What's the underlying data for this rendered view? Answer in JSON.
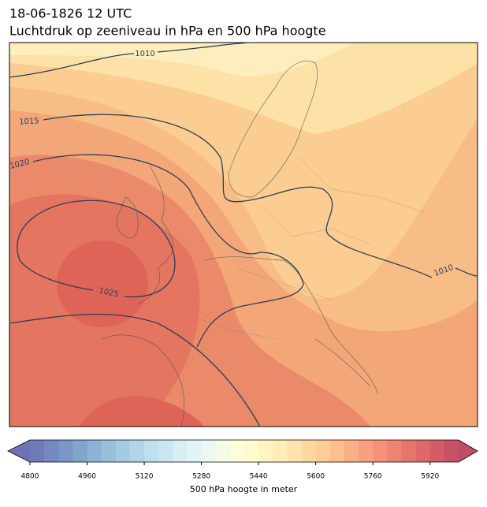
{
  "title": [
    "18-06-1826 12 UTC",
    "Luchtdruk op zeeniveau in hPa en 500 hPa hoogte"
  ],
  "map": {
    "isobar_labels": [
      1010,
      1015,
      1020,
      1025,
      1010
    ]
  },
  "colorbar": {
    "label": "500 hPa hoogte in meter",
    "lim": [
      4800,
      6000
    ],
    "ticks": [
      4800,
      4960,
      5120,
      5280,
      5440,
      5600,
      5760,
      5920
    ]
  }
}
